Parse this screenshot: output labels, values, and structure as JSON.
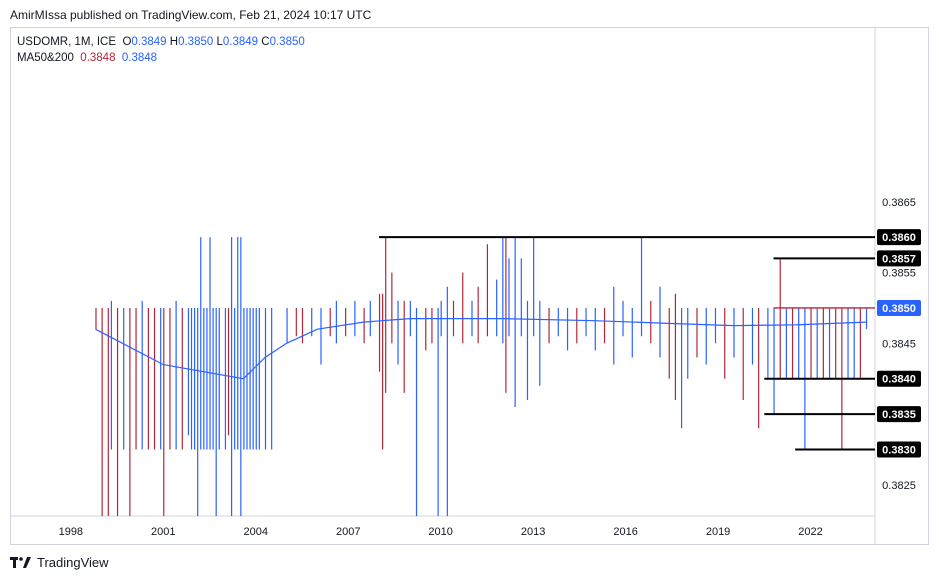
{
  "header": {
    "publisher_line": "AmirMIssa published on TradingView.com, Feb 21, 2024 10:17 UTC"
  },
  "legend": {
    "symbol_text": "USDOMR, 1M, ICE",
    "o_key": "O",
    "o_val": "0.3849",
    "h_key": "H",
    "h_val": "0.3850",
    "l_key": "L",
    "l_val": "0.3849",
    "c_key": "C",
    "c_val": "0.3850",
    "ma_label": "MA50&200",
    "ma50_val": "0.3848",
    "ma200_val": "0.3848"
  },
  "footer": {
    "brand": "TradingView"
  },
  "colors": {
    "up": "#2962ff",
    "down": "#b2283a",
    "ma": "#2962ff",
    "text": "#131722",
    "axis": "#d1d4dc",
    "price_tag": "#2962ff"
  },
  "chart_data": {
    "type": "ohlc",
    "symbol": "USDOMR",
    "interval": "1M",
    "exchange": "ICE",
    "x_axis": {
      "type": "date",
      "range": [
        1997.0,
        2025.0
      ],
      "ticks": [
        {
          "value": 1998.0,
          "label": "1998"
        },
        {
          "value": 2001.0,
          "label": "2001"
        },
        {
          "value": 2004.0,
          "label": "2004"
        },
        {
          "value": 2007.0,
          "label": "2007"
        },
        {
          "value": 2010.0,
          "label": "2010"
        },
        {
          "value": 2013.0,
          "label": "2013"
        },
        {
          "value": 2016.0,
          "label": "2016"
        },
        {
          "value": 2019.0,
          "label": "2019"
        },
        {
          "value": 2022.0,
          "label": "2022"
        }
      ]
    },
    "y_axis": {
      "range": [
        0.38206,
        0.38897
      ],
      "ticks": [
        "0.3865",
        "0.3855",
        "0.3845",
        "0.3825"
      ]
    },
    "current_price": "0.3850",
    "levels": [
      {
        "label": "0.3860",
        "value": 0.386,
        "from": 2008.0
      },
      {
        "label": "0.3857",
        "value": 0.3857,
        "from": 2020.8
      },
      {
        "label": "0.3850",
        "value": 0.385,
        "from": 2020.8,
        "color": "red"
      },
      {
        "label": "0.3840",
        "value": 0.384,
        "from": 2020.5
      },
      {
        "label": "0.3835",
        "value": 0.3835,
        "from": 2020.5
      },
      {
        "label": "0.3830",
        "value": 0.383,
        "from": 2021.5
      }
    ],
    "ma200": [
      [
        1998.8,
        0.3847
      ],
      [
        2001.0,
        0.3842
      ],
      [
        2003.6,
        0.384
      ],
      [
        2004.3,
        0.3843
      ],
      [
        2005.0,
        0.3845
      ],
      [
        2006.0,
        0.3847
      ],
      [
        2007.5,
        0.3848
      ],
      [
        2009.0,
        0.38485
      ],
      [
        2012.0,
        0.38485
      ],
      [
        2015.0,
        0.38482
      ],
      [
        2017.5,
        0.38478
      ],
      [
        2019.5,
        0.38475
      ],
      [
        2021.5,
        0.38476
      ],
      [
        2023.8,
        0.3848
      ]
    ],
    "bars": [
      {
        "x": 1997.0,
        "h": 0.385,
        "l": 0.385,
        "dir": "up"
      },
      {
        "x": 1998.0,
        "h": 0.385,
        "l": 0.385,
        "dir": "up"
      },
      {
        "x": 1998.8,
        "h": 0.385,
        "l": 0.3847,
        "dir": "down"
      },
      {
        "x": 1999.0,
        "h": 0.385,
        "l": 0.382,
        "dir": "down"
      },
      {
        "x": 1999.2,
        "h": 0.385,
        "l": 0.382,
        "dir": "down"
      },
      {
        "x": 1999.3,
        "h": 0.3851,
        "l": 0.383,
        "dir": "up"
      },
      {
        "x": 1999.5,
        "h": 0.385,
        "l": 0.382,
        "dir": "down"
      },
      {
        "x": 1999.7,
        "h": 0.385,
        "l": 0.383,
        "dir": "up"
      },
      {
        "x": 1999.9,
        "h": 0.385,
        "l": 0.382,
        "dir": "down"
      },
      {
        "x": 2000.1,
        "h": 0.385,
        "l": 0.383,
        "dir": "down"
      },
      {
        "x": 2000.3,
        "h": 0.3851,
        "l": 0.383,
        "dir": "up"
      },
      {
        "x": 2000.5,
        "h": 0.385,
        "l": 0.383,
        "dir": "down"
      },
      {
        "x": 2000.7,
        "h": 0.385,
        "l": 0.383,
        "dir": "down"
      },
      {
        "x": 2000.9,
        "h": 0.385,
        "l": 0.383,
        "dir": "up"
      },
      {
        "x": 2001.0,
        "h": 0.385,
        "l": 0.382,
        "dir": "down"
      },
      {
        "x": 2001.2,
        "h": 0.385,
        "l": 0.383,
        "dir": "down"
      },
      {
        "x": 2001.4,
        "h": 0.3851,
        "l": 0.383,
        "dir": "up"
      },
      {
        "x": 2001.6,
        "h": 0.385,
        "l": 0.383,
        "dir": "down"
      },
      {
        "x": 2001.8,
        "h": 0.385,
        "l": 0.3832,
        "dir": "up"
      },
      {
        "x": 2001.9,
        "h": 0.385,
        "l": 0.383,
        "dir": "up"
      },
      {
        "x": 2002.0,
        "h": 0.385,
        "l": 0.383,
        "dir": "up"
      },
      {
        "x": 2002.1,
        "h": 0.385,
        "l": 0.382,
        "dir": "up"
      },
      {
        "x": 2002.2,
        "h": 0.386,
        "l": 0.383,
        "dir": "up"
      },
      {
        "x": 2002.3,
        "h": 0.385,
        "l": 0.383,
        "dir": "up"
      },
      {
        "x": 2002.4,
        "h": 0.385,
        "l": 0.383,
        "dir": "up"
      },
      {
        "x": 2002.5,
        "h": 0.386,
        "l": 0.383,
        "dir": "up"
      },
      {
        "x": 2002.6,
        "h": 0.385,
        "l": 0.383,
        "dir": "up"
      },
      {
        "x": 2002.7,
        "h": 0.385,
        "l": 0.382,
        "dir": "up"
      },
      {
        "x": 2002.8,
        "h": 0.385,
        "l": 0.383,
        "dir": "up"
      },
      {
        "x": 2003.0,
        "h": 0.385,
        "l": 0.383,
        "dir": "up"
      },
      {
        "x": 2003.1,
        "h": 0.385,
        "l": 0.3832,
        "dir": "down"
      },
      {
        "x": 2003.2,
        "h": 0.386,
        "l": 0.382,
        "dir": "up"
      },
      {
        "x": 2003.3,
        "h": 0.385,
        "l": 0.383,
        "dir": "up"
      },
      {
        "x": 2003.4,
        "h": 0.386,
        "l": 0.383,
        "dir": "up"
      },
      {
        "x": 2003.5,
        "h": 0.386,
        "l": 0.382,
        "dir": "up"
      },
      {
        "x": 2003.6,
        "h": 0.385,
        "l": 0.383,
        "dir": "up"
      },
      {
        "x": 2003.7,
        "h": 0.385,
        "l": 0.383,
        "dir": "up"
      },
      {
        "x": 2003.8,
        "h": 0.385,
        "l": 0.383,
        "dir": "up"
      },
      {
        "x": 2003.9,
        "h": 0.385,
        "l": 0.383,
        "dir": "up"
      },
      {
        "x": 2004.0,
        "h": 0.385,
        "l": 0.383,
        "dir": "up"
      },
      {
        "x": 2004.1,
        "h": 0.385,
        "l": 0.383,
        "dir": "up"
      },
      {
        "x": 2004.3,
        "h": 0.385,
        "l": 0.383,
        "dir": "up"
      },
      {
        "x": 2004.5,
        "h": 0.385,
        "l": 0.383,
        "dir": "up"
      },
      {
        "x": 2005.0,
        "h": 0.385,
        "l": 0.3845,
        "dir": "up"
      },
      {
        "x": 2005.3,
        "h": 0.385,
        "l": 0.3846,
        "dir": "down"
      },
      {
        "x": 2005.5,
        "h": 0.385,
        "l": 0.3845,
        "dir": "down"
      },
      {
        "x": 2005.8,
        "h": 0.385,
        "l": 0.3846,
        "dir": "up"
      },
      {
        "x": 2006.1,
        "h": 0.385,
        "l": 0.3842,
        "dir": "up"
      },
      {
        "x": 2006.4,
        "h": 0.385,
        "l": 0.3846,
        "dir": "down"
      },
      {
        "x": 2006.6,
        "h": 0.3851,
        "l": 0.3845,
        "dir": "up"
      },
      {
        "x": 2006.9,
        "h": 0.385,
        "l": 0.3846,
        "dir": "down"
      },
      {
        "x": 2007.2,
        "h": 0.3851,
        "l": 0.3846,
        "dir": "up"
      },
      {
        "x": 2007.5,
        "h": 0.385,
        "l": 0.3845,
        "dir": "down"
      },
      {
        "x": 2007.7,
        "h": 0.3851,
        "l": 0.3846,
        "dir": "up"
      },
      {
        "x": 2008.0,
        "h": 0.3852,
        "l": 0.3841,
        "dir": "down"
      },
      {
        "x": 2008.1,
        "h": 0.3852,
        "l": 0.383,
        "dir": "down"
      },
      {
        "x": 2008.2,
        "h": 0.386,
        "l": 0.3838,
        "dir": "down"
      },
      {
        "x": 2008.4,
        "h": 0.3855,
        "l": 0.3845,
        "dir": "down"
      },
      {
        "x": 2008.6,
        "h": 0.3851,
        "l": 0.3842,
        "dir": "up"
      },
      {
        "x": 2008.8,
        "h": 0.3851,
        "l": 0.3838,
        "dir": "down"
      },
      {
        "x": 2009.0,
        "h": 0.3851,
        "l": 0.3846,
        "dir": "up"
      },
      {
        "x": 2009.2,
        "h": 0.385,
        "l": 0.382,
        "dir": "up"
      },
      {
        "x": 2009.5,
        "h": 0.385,
        "l": 0.3844,
        "dir": "down"
      },
      {
        "x": 2009.7,
        "h": 0.385,
        "l": 0.3845,
        "dir": "down"
      },
      {
        "x": 2009.9,
        "h": 0.385,
        "l": 0.382,
        "dir": "up"
      },
      {
        "x": 2010.0,
        "h": 0.3851,
        "l": 0.3846,
        "dir": "up"
      },
      {
        "x": 2010.2,
        "h": 0.3853,
        "l": 0.382,
        "dir": "up"
      },
      {
        "x": 2010.4,
        "h": 0.3851,
        "l": 0.3846,
        "dir": "down"
      },
      {
        "x": 2010.7,
        "h": 0.3855,
        "l": 0.3845,
        "dir": "down"
      },
      {
        "x": 2011.0,
        "h": 0.3851,
        "l": 0.3846,
        "dir": "up"
      },
      {
        "x": 2011.2,
        "h": 0.3853,
        "l": 0.3845,
        "dir": "down"
      },
      {
        "x": 2011.5,
        "h": 0.3859,
        "l": 0.3846,
        "dir": "down"
      },
      {
        "x": 2011.8,
        "h": 0.3854,
        "l": 0.3846,
        "dir": "up"
      },
      {
        "x": 2012.0,
        "h": 0.386,
        "l": 0.3845,
        "dir": "up"
      },
      {
        "x": 2012.1,
        "h": 0.386,
        "l": 0.3838,
        "dir": "down"
      },
      {
        "x": 2012.2,
        "h": 0.3857,
        "l": 0.3846,
        "dir": "up"
      },
      {
        "x": 2012.4,
        "h": 0.386,
        "l": 0.3836,
        "dir": "up"
      },
      {
        "x": 2012.6,
        "h": 0.3857,
        "l": 0.3846,
        "dir": "up"
      },
      {
        "x": 2012.8,
        "h": 0.3851,
        "l": 0.3837,
        "dir": "up"
      },
      {
        "x": 2013.0,
        "h": 0.386,
        "l": 0.3846,
        "dir": "up"
      },
      {
        "x": 2013.2,
        "h": 0.3851,
        "l": 0.3839,
        "dir": "up"
      },
      {
        "x": 2013.5,
        "h": 0.385,
        "l": 0.3845,
        "dir": "down"
      },
      {
        "x": 2013.8,
        "h": 0.385,
        "l": 0.3846,
        "dir": "up"
      },
      {
        "x": 2014.1,
        "h": 0.385,
        "l": 0.3844,
        "dir": "up"
      },
      {
        "x": 2014.4,
        "h": 0.385,
        "l": 0.3845,
        "dir": "down"
      },
      {
        "x": 2014.7,
        "h": 0.385,
        "l": 0.3846,
        "dir": "up"
      },
      {
        "x": 2015.0,
        "h": 0.385,
        "l": 0.3844,
        "dir": "up"
      },
      {
        "x": 2015.3,
        "h": 0.385,
        "l": 0.3845,
        "dir": "down"
      },
      {
        "x": 2015.6,
        "h": 0.3853,
        "l": 0.3842,
        "dir": "up"
      },
      {
        "x": 2015.9,
        "h": 0.3851,
        "l": 0.3846,
        "dir": "up"
      },
      {
        "x": 2016.2,
        "h": 0.385,
        "l": 0.3843,
        "dir": "up"
      },
      {
        "x": 2016.5,
        "h": 0.386,
        "l": 0.3846,
        "dir": "up"
      },
      {
        "x": 2016.8,
        "h": 0.3851,
        "l": 0.3845,
        "dir": "down"
      },
      {
        "x": 2017.1,
        "h": 0.3853,
        "l": 0.3843,
        "dir": "up"
      },
      {
        "x": 2017.4,
        "h": 0.385,
        "l": 0.384,
        "dir": "down"
      },
      {
        "x": 2017.6,
        "h": 0.3852,
        "l": 0.3837,
        "dir": "down"
      },
      {
        "x": 2017.8,
        "h": 0.385,
        "l": 0.3833,
        "dir": "up"
      },
      {
        "x": 2018.0,
        "h": 0.385,
        "l": 0.384,
        "dir": "up"
      },
      {
        "x": 2018.3,
        "h": 0.385,
        "l": 0.3843,
        "dir": "down"
      },
      {
        "x": 2018.6,
        "h": 0.385,
        "l": 0.3842,
        "dir": "up"
      },
      {
        "x": 2018.9,
        "h": 0.385,
        "l": 0.3845,
        "dir": "up"
      },
      {
        "x": 2019.2,
        "h": 0.385,
        "l": 0.384,
        "dir": "down"
      },
      {
        "x": 2019.5,
        "h": 0.385,
        "l": 0.3843,
        "dir": "up"
      },
      {
        "x": 2019.8,
        "h": 0.385,
        "l": 0.3837,
        "dir": "down"
      },
      {
        "x": 2020.1,
        "h": 0.385,
        "l": 0.3842,
        "dir": "up"
      },
      {
        "x": 2020.3,
        "h": 0.385,
        "l": 0.3833,
        "dir": "down"
      },
      {
        "x": 2020.6,
        "h": 0.385,
        "l": 0.384,
        "dir": "up"
      },
      {
        "x": 2020.8,
        "h": 0.385,
        "l": 0.3835,
        "dir": "up"
      },
      {
        "x": 2021.0,
        "h": 0.3857,
        "l": 0.384,
        "dir": "down"
      },
      {
        "x": 2021.2,
        "h": 0.385,
        "l": 0.384,
        "dir": "up"
      },
      {
        "x": 2021.4,
        "h": 0.385,
        "l": 0.384,
        "dir": "down"
      },
      {
        "x": 2021.6,
        "h": 0.385,
        "l": 0.384,
        "dir": "up"
      },
      {
        "x": 2021.8,
        "h": 0.385,
        "l": 0.383,
        "dir": "up"
      },
      {
        "x": 2022.0,
        "h": 0.385,
        "l": 0.384,
        "dir": "down"
      },
      {
        "x": 2022.2,
        "h": 0.385,
        "l": 0.384,
        "dir": "up"
      },
      {
        "x": 2022.4,
        "h": 0.385,
        "l": 0.384,
        "dir": "down"
      },
      {
        "x": 2022.6,
        "h": 0.385,
        "l": 0.384,
        "dir": "up"
      },
      {
        "x": 2022.8,
        "h": 0.385,
        "l": 0.384,
        "dir": "down"
      },
      {
        "x": 2023.0,
        "h": 0.385,
        "l": 0.383,
        "dir": "down"
      },
      {
        "x": 2023.2,
        "h": 0.385,
        "l": 0.384,
        "dir": "up"
      },
      {
        "x": 2023.4,
        "h": 0.385,
        "l": 0.384,
        "dir": "up"
      },
      {
        "x": 2023.6,
        "h": 0.385,
        "l": 0.384,
        "dir": "down"
      },
      {
        "x": 2023.8,
        "h": 0.385,
        "l": 0.3847,
        "dir": "up"
      }
    ]
  }
}
